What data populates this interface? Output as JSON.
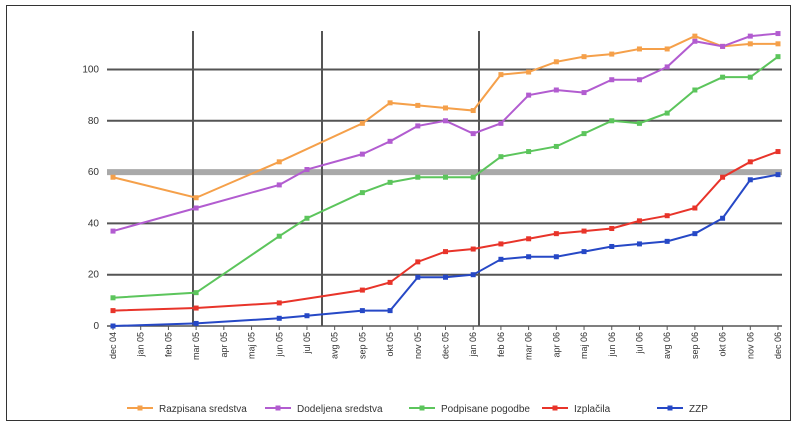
{
  "chart_data": {
    "type": "line",
    "categories": [
      "dec 04",
      "jan 05",
      "feb 05",
      "mar 05",
      "apr 05",
      "maj 05",
      "jun 05",
      "jul 05",
      "avg 05",
      "sep 05",
      "okt 05",
      "nov 05",
      "dec 05",
      "jan 06",
      "feb 06",
      "mar 06",
      "apr 06",
      "maj 06",
      "jun 06",
      "jul 06",
      "avg 06",
      "sep 06",
      "okt 06",
      "nov 06",
      "dec 06"
    ],
    "ylim": [
      0,
      115
    ],
    "yticks": [
      0,
      20,
      40,
      60,
      80,
      100
    ],
    "ytick_labels": [
      "0",
      "20",
      "40",
      "60",
      "80",
      "100"
    ],
    "grid_y": true,
    "vertical_markers_after": [
      "dec 04",
      "mar 05",
      "jul 05",
      "jan 06"
    ],
    "legend_position": "bottom",
    "series": [
      {
        "name": "Razpisana sredstva",
        "color": "#f5a04a",
        "values": [
          58,
          null,
          null,
          50,
          null,
          null,
          64,
          null,
          null,
          79,
          87,
          86,
          85,
          84,
          98,
          99,
          103,
          105,
          106,
          108,
          108,
          113,
          109,
          110,
          110
        ]
      },
      {
        "name": "Dodeljena sredstva",
        "color": "#b25cd0",
        "values": [
          37,
          null,
          null,
          46,
          null,
          null,
          55,
          61,
          null,
          67,
          72,
          78,
          80,
          75,
          79,
          90,
          92,
          91,
          96,
          96,
          101,
          111,
          109,
          113,
          114
        ]
      },
      {
        "name": "Podpisane pogodbe",
        "color": "#5cc55c",
        "values": [
          11,
          null,
          null,
          13,
          null,
          null,
          35,
          42,
          null,
          52,
          56,
          58,
          58,
          58,
          66,
          68,
          70,
          75,
          80,
          79,
          83,
          92,
          97,
          97,
          105
        ]
      },
      {
        "name": "Izplačila",
        "color": "#e8342a",
        "values": [
          6,
          null,
          null,
          7,
          null,
          null,
          9,
          null,
          null,
          14,
          17,
          25,
          29,
          30,
          32,
          34,
          36,
          37,
          38,
          41,
          43,
          46,
          58,
          64,
          68
        ]
      },
      {
        "name": "ZZP",
        "color": "#2648c6",
        "values": [
          0,
          null,
          null,
          1,
          null,
          null,
          3,
          4,
          null,
          6,
          6,
          19,
          19,
          20,
          26,
          27,
          27,
          29,
          31,
          32,
          33,
          36,
          42,
          57,
          59
        ]
      }
    ]
  }
}
